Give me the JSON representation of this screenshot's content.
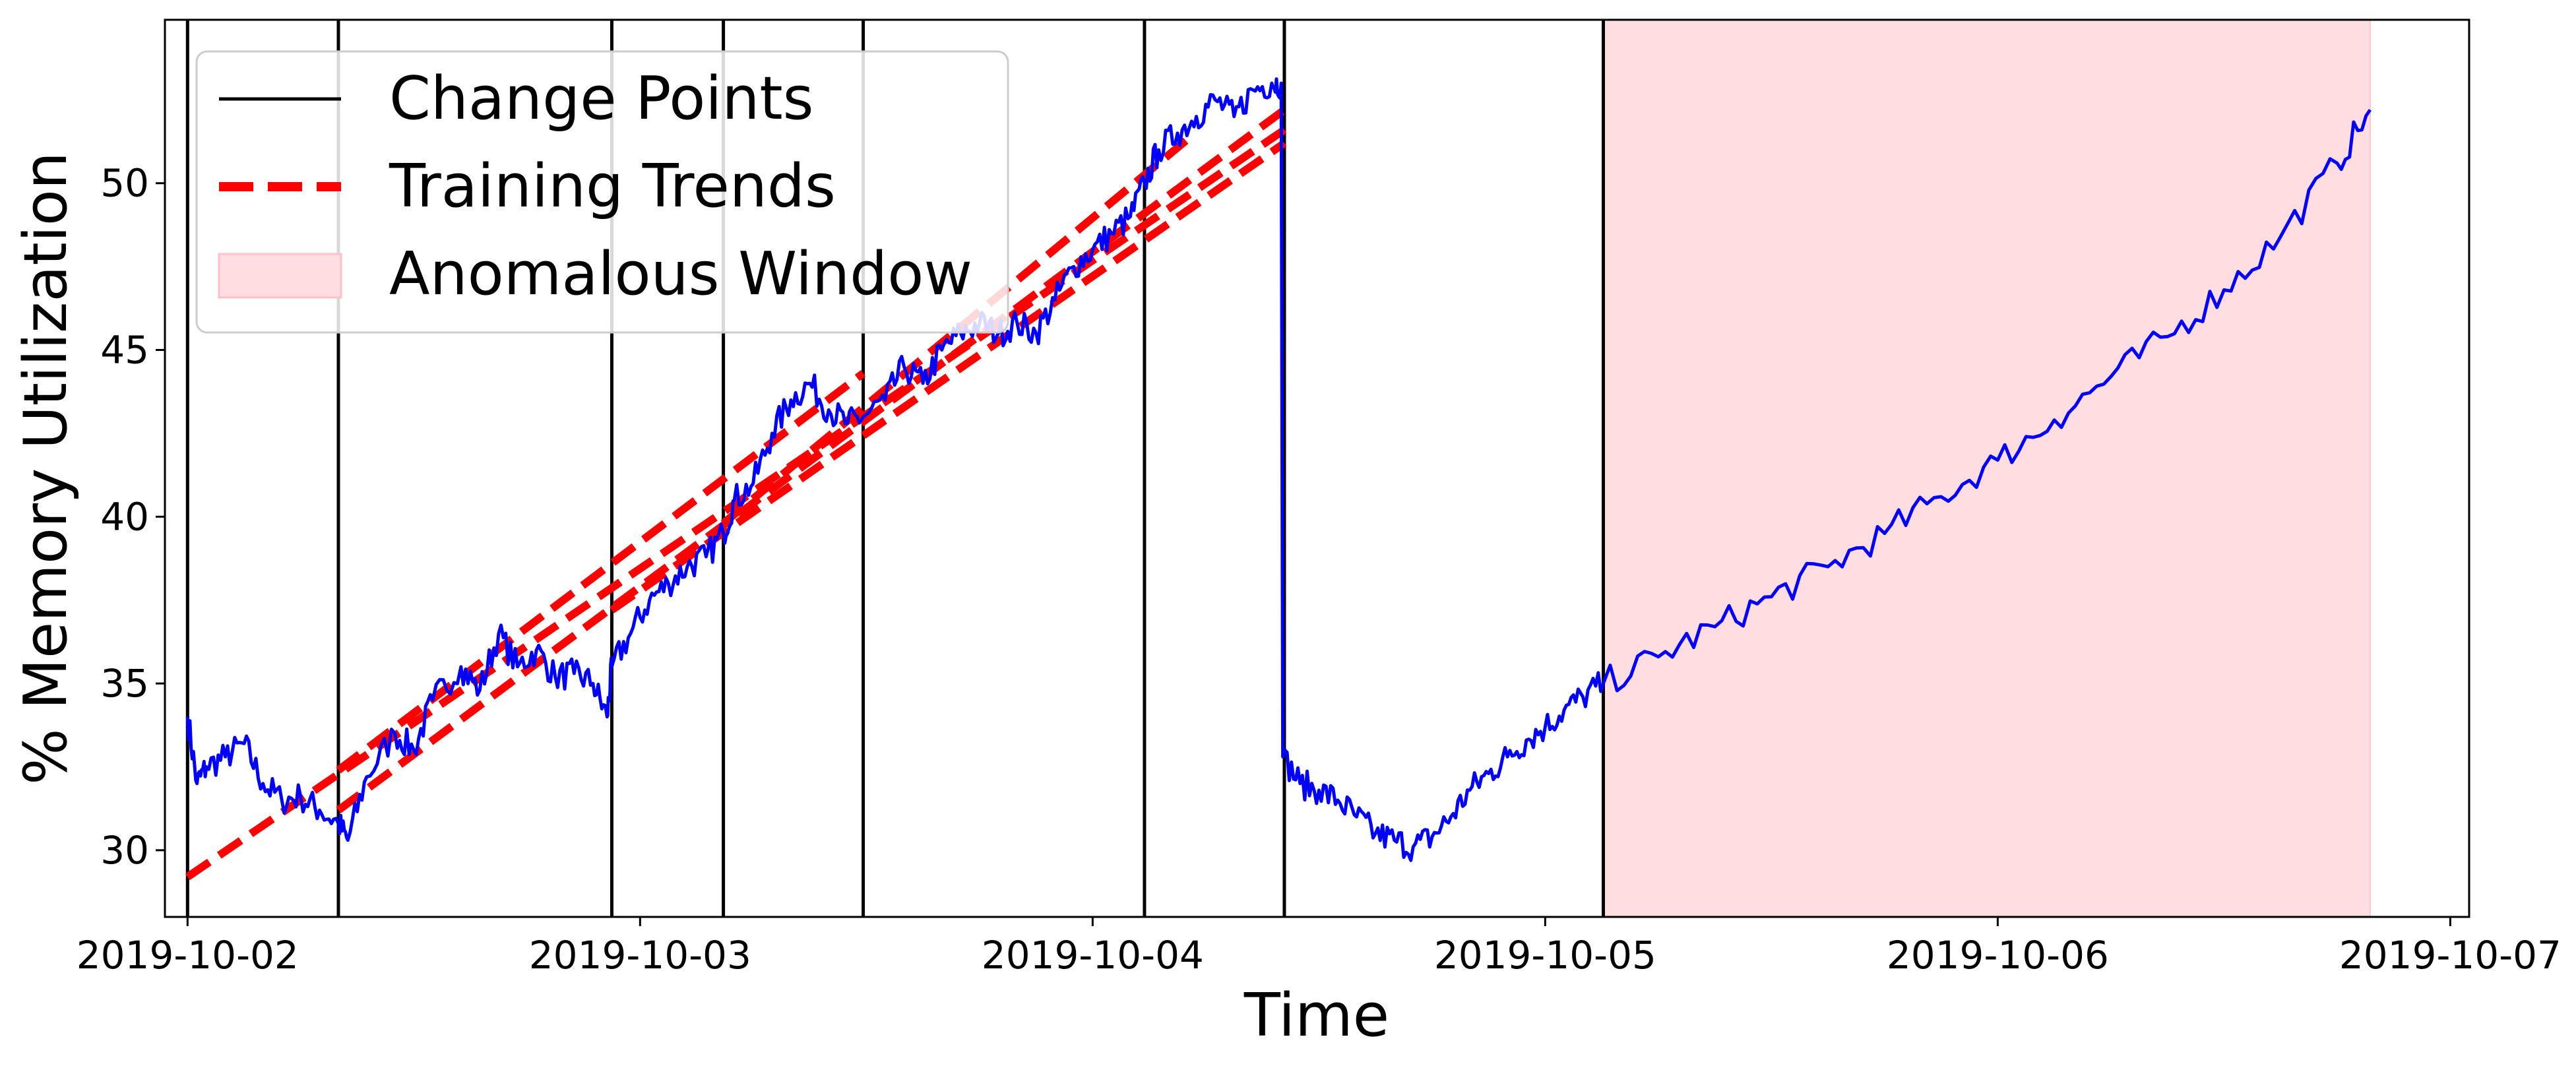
{
  "chart_data": {
    "type": "line",
    "xlabel": "Time",
    "ylabel": "% Memory Utilization",
    "x_axis": {
      "scale": "time",
      "range": [
        "2019-10-01T22:48",
        "2019-10-07T01:00"
      ],
      "ticks": [
        "2019-10-02",
        "2019-10-03",
        "2019-10-04",
        "2019-10-05",
        "2019-10-06",
        "2019-10-07"
      ]
    },
    "y_axis": {
      "range": [
        28,
        54.9
      ],
      "ticks": [
        30,
        35,
        40,
        45,
        50
      ]
    },
    "legend": {
      "placement": "top-left",
      "entries": [
        {
          "label": "Change Points",
          "style": "solid-black-line"
        },
        {
          "label": "Training Trends",
          "style": "dashed-red-line"
        },
        {
          "label": "Anomalous Window",
          "style": "pink-band"
        }
      ]
    },
    "grid": false,
    "colors": {
      "series": "#0000ff",
      "change_points": "#000000",
      "training_trends": "#ff0000",
      "anomalous_window": "#ffdde1"
    },
    "change_points": [
      "2019-10-02T00:00",
      "2019-10-02T08:00",
      "2019-10-02T22:30",
      "2019-10-03T04:25",
      "2019-10-03T11:50",
      "2019-10-04T02:45",
      "2019-10-04T10:10",
      "2019-10-05T03:05"
    ],
    "anomalous_window": {
      "start": "2019-10-05T03:05",
      "end": "2019-10-06T19:45"
    },
    "training_trends": [
      {
        "start": [
          "2019-10-02T00:00",
          29.2
        ],
        "end": [
          "2019-10-04T10:10",
          51.6
        ]
      },
      {
        "start": [
          "2019-10-02T08:00",
          31.2
        ],
        "end": [
          "2019-10-04T10:10",
          52.2
        ]
      },
      {
        "start": [
          "2019-10-02T08:00",
          32.4
        ],
        "end": [
          "2019-10-03T11:50",
          44.3
        ]
      },
      {
        "start": [
          "2019-10-02T22:30",
          37.2
        ],
        "end": [
          "2019-10-04T10:10",
          51.2
        ]
      },
      {
        "start": [
          "2019-10-03T04:25",
          39.8
        ],
        "end": [
          "2019-10-04T05:00",
          51.3
        ]
      }
    ],
    "series": [
      {
        "points": [
          [
            "2019-10-02T00:00",
            34.0
          ],
          [
            "2019-10-02T00:30",
            32.0
          ],
          [
            "2019-10-02T01:00",
            32.5
          ],
          [
            "2019-10-02T02:00",
            32.8
          ],
          [
            "2019-10-02T03:00",
            33.2
          ],
          [
            "2019-10-02T04:00",
            32.0
          ],
          [
            "2019-10-02T05:00",
            31.5
          ],
          [
            "2019-10-02T06:00",
            31.6
          ],
          [
            "2019-10-02T07:00",
            31.2
          ],
          [
            "2019-10-02T08:00",
            30.8
          ],
          [
            "2019-10-02T08:30",
            30.3
          ],
          [
            "2019-10-02T09:30",
            32.2
          ],
          [
            "2019-10-02T11:00",
            33.5
          ],
          [
            "2019-10-02T12:00",
            33.0
          ],
          [
            "2019-10-02T13:00",
            34.5
          ],
          [
            "2019-10-02T14:30",
            35.5
          ],
          [
            "2019-10-02T15:30",
            34.8
          ],
          [
            "2019-10-02T16:30",
            36.5
          ],
          [
            "2019-10-02T17:30",
            35.5
          ],
          [
            "2019-10-02T18:30",
            36.0
          ],
          [
            "2019-10-02T19:30",
            35.2
          ],
          [
            "2019-10-02T20:30",
            35.3
          ],
          [
            "2019-10-02T21:30",
            35.0
          ],
          [
            "2019-10-02T22:15",
            34.0
          ],
          [
            "2019-10-02T22:30",
            35.5
          ],
          [
            "2019-10-02T23:30",
            36.5
          ],
          [
            "2019-10-03T00:30",
            37.5
          ],
          [
            "2019-10-03T01:30",
            38.0
          ],
          [
            "2019-10-03T02:30",
            38.5
          ],
          [
            "2019-10-03T03:30",
            38.8
          ],
          [
            "2019-10-03T04:25",
            39.5
          ],
          [
            "2019-10-03T05:00",
            40.5
          ],
          [
            "2019-10-03T06:00",
            41.0
          ],
          [
            "2019-10-03T07:00",
            42.5
          ],
          [
            "2019-10-03T08:00",
            43.5
          ],
          [
            "2019-10-03T09:00",
            44.0
          ],
          [
            "2019-10-03T10:00",
            43.2
          ],
          [
            "2019-10-03T11:00",
            42.8
          ],
          [
            "2019-10-03T11:50",
            43.0
          ],
          [
            "2019-10-03T13:00",
            43.5
          ],
          [
            "2019-10-03T14:00",
            44.5
          ],
          [
            "2019-10-03T15:00",
            44.0
          ],
          [
            "2019-10-03T16:00",
            45.0
          ],
          [
            "2019-10-03T17:00",
            45.5
          ],
          [
            "2019-10-03T18:00",
            45.8
          ],
          [
            "2019-10-03T19:00",
            45.5
          ],
          [
            "2019-10-03T20:00",
            45.8
          ],
          [
            "2019-10-03T21:00",
            45.5
          ],
          [
            "2019-10-03T22:00",
            46.5
          ],
          [
            "2019-10-03T23:00",
            47.5
          ],
          [
            "2019-10-04T00:00",
            48.0
          ],
          [
            "2019-10-04T01:00",
            48.5
          ],
          [
            "2019-10-04T02:00",
            49.0
          ],
          [
            "2019-10-04T02:45",
            50.0
          ],
          [
            "2019-10-04T03:30",
            51.0
          ],
          [
            "2019-10-04T04:30",
            51.5
          ],
          [
            "2019-10-04T05:30",
            52.0
          ],
          [
            "2019-10-04T06:30",
            52.5
          ],
          [
            "2019-10-04T07:30",
            52.0
          ],
          [
            "2019-10-04T08:30",
            52.8
          ],
          [
            "2019-10-04T09:30",
            53.0
          ],
          [
            "2019-10-04T10:00",
            53.0
          ],
          [
            "2019-10-04T10:05",
            32.8
          ],
          [
            "2019-10-04T11:00",
            32.0
          ],
          [
            "2019-10-04T12:00",
            31.8
          ],
          [
            "2019-10-04T13:00",
            31.5
          ],
          [
            "2019-10-04T14:00",
            31.0
          ],
          [
            "2019-10-04T15:00",
            30.5
          ],
          [
            "2019-10-04T16:00",
            30.3
          ],
          [
            "2019-10-04T17:00",
            30.1
          ],
          [
            "2019-10-04T18:00",
            30.4
          ],
          [
            "2019-10-04T19:00",
            31.0
          ],
          [
            "2019-10-04T20:00",
            31.8
          ],
          [
            "2019-10-04T21:00",
            32.3
          ],
          [
            "2019-10-04T22:00",
            32.8
          ],
          [
            "2019-10-04T23:00",
            33.3
          ],
          [
            "2019-10-05T00:00",
            33.7
          ],
          [
            "2019-10-05T01:00",
            34.2
          ],
          [
            "2019-10-05T02:00",
            34.6
          ],
          [
            "2019-10-05T03:05",
            35.0
          ],
          [
            "2019-10-05T06:00",
            35.8
          ],
          [
            "2019-10-05T09:00",
            36.7
          ],
          [
            "2019-10-05T12:00",
            37.6
          ],
          [
            "2019-10-05T15:00",
            38.5
          ],
          [
            "2019-10-05T18:00",
            39.5
          ],
          [
            "2019-10-05T21:00",
            40.6
          ],
          [
            "2019-10-06T00:00",
            41.7
          ],
          [
            "2019-10-06T03:00",
            42.9
          ],
          [
            "2019-10-06T06:00",
            44.2
          ],
          [
            "2019-10-06T09:00",
            45.4
          ],
          [
            "2019-10-06T12:00",
            46.8
          ],
          [
            "2019-10-06T15:00",
            48.4
          ],
          [
            "2019-10-06T18:00",
            50.6
          ],
          [
            "2019-10-06T19:45",
            52.2
          ]
        ]
      }
    ]
  }
}
